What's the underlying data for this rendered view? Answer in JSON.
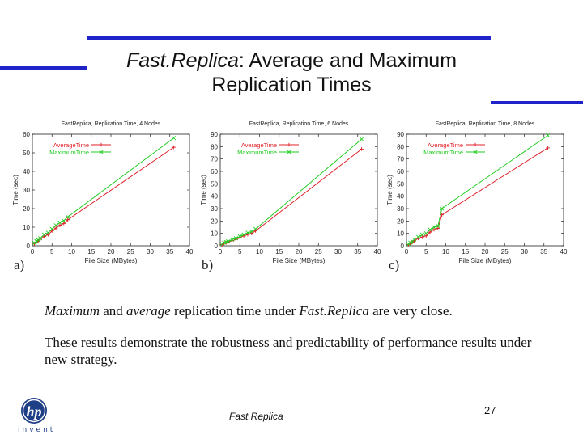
{
  "slide": {
    "title_italic": "Fast.Replica",
    "title_rest": ":  Average and Maximum",
    "title_line2": "Replication Times",
    "panel_labels": [
      "a)",
      "b)",
      "c)"
    ],
    "text1": {
      "w1": "Maximum",
      "w2": " and ",
      "w3": "average",
      "w4": " replication time under ",
      "w5": "Fast.Replica",
      "w6": "  are very close."
    },
    "text2": "These results demonstrate the robustness and predictability of performance results under new strategy.",
    "footer": "Fast.Replica",
    "page_number": "27",
    "logo": {
      "text": "invent",
      "icon": "hp-logo"
    }
  },
  "colors": {
    "accent_bar": "#1f23c8",
    "average": "#e0202a",
    "maximum": "#22cc22"
  },
  "chart_data": [
    {
      "type": "line",
      "title": "FastReplica, Replication Time, 4 Nodes",
      "xlabel": "File Size (MBytes)",
      "ylabel": "Time (sec)",
      "xlim": [
        0,
        40
      ],
      "ylim": [
        0,
        60
      ],
      "xticks": [
        0,
        5,
        10,
        15,
        20,
        25,
        30,
        35,
        40
      ],
      "yticks": [
        0,
        10,
        20,
        30,
        40,
        50,
        60
      ],
      "legend": "top-left",
      "series": [
        {
          "name": "AverageTime",
          "x": [
            0.5,
            1,
            1.5,
            2,
            3,
            4,
            5,
            6,
            7,
            8,
            9,
            36
          ],
          "y": [
            1,
            2,
            2.5,
            3.5,
            5,
            6,
            8,
            9.5,
            11,
            12,
            14,
            53
          ]
        },
        {
          "name": "MaximumTime",
          "x": [
            0.5,
            1,
            1.5,
            2,
            3,
            4,
            5,
            6,
            7,
            8,
            9,
            36
          ],
          "y": [
            1.5,
            2.5,
            3,
            4,
            6,
            7,
            9,
            11,
            12.5,
            13.5,
            15.5,
            58
          ]
        }
      ]
    },
    {
      "type": "line",
      "title": "FastReplica, Replication Time, 6 Nodes",
      "xlabel": "File Size (MBytes)",
      "ylabel": "Time (sec)",
      "xlim": [
        0,
        40
      ],
      "ylim": [
        0,
        90
      ],
      "xticks": [
        0,
        5,
        10,
        15,
        20,
        25,
        30,
        35,
        40
      ],
      "yticks": [
        0,
        10,
        20,
        30,
        40,
        50,
        60,
        70,
        80,
        90
      ],
      "legend": "top-left",
      "series": [
        {
          "name": "AverageTime",
          "x": [
            0.5,
            1,
            1.5,
            2,
            3,
            4,
            5,
            6,
            7,
            8,
            9,
            36
          ],
          "y": [
            1,
            2,
            2.5,
            3,
            4,
            5,
            6.5,
            8,
            9,
            10,
            12,
            78
          ]
        },
        {
          "name": "MaximumTime",
          "x": [
            0.5,
            1,
            1.5,
            2,
            3,
            4,
            5,
            6,
            7,
            8,
            9,
            36
          ],
          "y": [
            1.5,
            2.5,
            3,
            3.5,
            5,
            6,
            7.5,
            9,
            10.5,
            11.5,
            13.5,
            86
          ]
        }
      ]
    },
    {
      "type": "line",
      "title": "FastReplica, Replication Time, 8 Nodes",
      "xlabel": "File Size (MBytes)",
      "ylabel": "Time (sec)",
      "xlim": [
        0,
        40
      ],
      "ylim": [
        0,
        90
      ],
      "xticks": [
        0,
        5,
        10,
        15,
        20,
        25,
        30,
        35,
        40
      ],
      "yticks": [
        0,
        10,
        20,
        30,
        40,
        50,
        60,
        70,
        80,
        90
      ],
      "legend": "top-left",
      "series": [
        {
          "name": "AverageTime",
          "x": [
            0.5,
            1,
            1.5,
            2,
            3,
            4,
            5,
            6,
            7,
            8,
            9,
            36
          ],
          "y": [
            1,
            2,
            3,
            4,
            6,
            7,
            8,
            11,
            13,
            14,
            25,
            79
          ]
        },
        {
          "name": "MaximumTime",
          "x": [
            0.5,
            1,
            1.5,
            2,
            3,
            4,
            5,
            6,
            7,
            8,
            9,
            36
          ],
          "y": [
            1.5,
            2.5,
            3.5,
            5,
            7,
            9,
            10,
            13,
            15,
            16,
            30,
            89
          ]
        }
      ]
    }
  ]
}
